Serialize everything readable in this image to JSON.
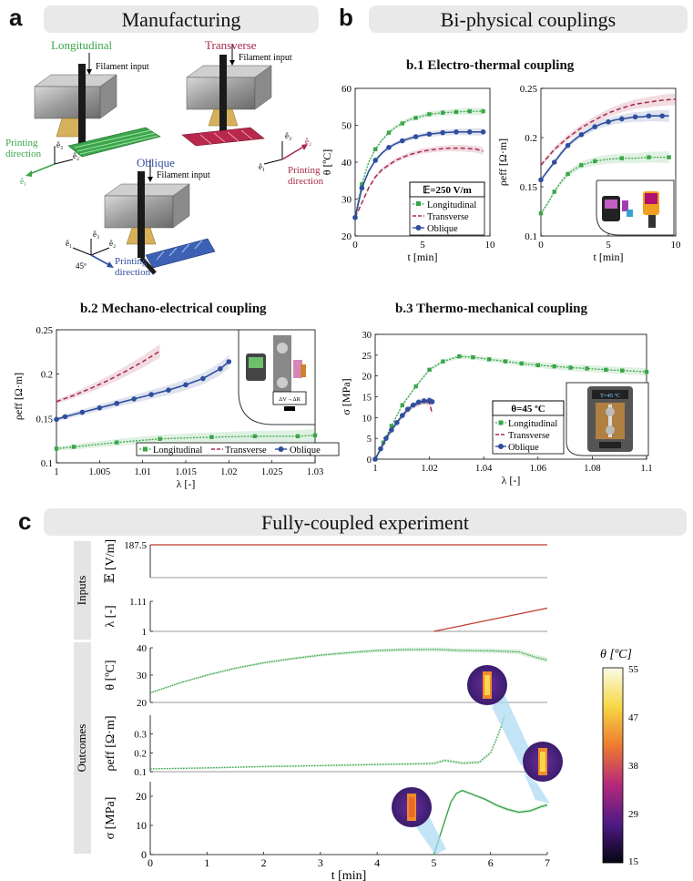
{
  "panel_a": {
    "letter": "a",
    "title": "Manufacturing",
    "orientations": {
      "longitudinal": "Longitudinal",
      "transverse": "Transverse",
      "oblique": "Oblique"
    },
    "filament_input": "Filament input",
    "printing": "Printing",
    "direction": "direction",
    "angle": "45º",
    "axes": {
      "e1": "ê₁",
      "e2": "ê₂",
      "e3": "ê₃"
    },
    "colors": {
      "longitudinal": "#3aa54a",
      "transverse": "#a7284a",
      "oblique": "#2f4e9e"
    }
  },
  "panel_b": {
    "letter": "b",
    "title": "Bi-physical couplings",
    "b1_title": "b.1 Electro-thermal coupling",
    "b2_title": "b.2  Mechano-electrical coupling",
    "b3_title": "b.3 Thermo-mechanical coupling",
    "b1_box": "𝔼=250 V/m",
    "b3_box": "θ=45 ºC",
    "b2_inset_text": "ΔV→ΔR",
    "b3_inset_text": "T=45 ºC",
    "legend": {
      "longitudinal": "Longitudinal",
      "transverse": "Transverse",
      "oblique": "Oblique"
    }
  },
  "panel_c": {
    "letter": "c",
    "title": "Fully-coupled experiment",
    "inputs_label": "Inputs",
    "outcomes_label": "Outcomes",
    "colorbar_title": "θ [ºC]",
    "colorbar_ticks": [
      "55",
      "47",
      "38",
      "29",
      "15"
    ]
  },
  "chart_data": [
    {
      "id": "b1-theta",
      "type": "line",
      "xlabel": "t [min]",
      "ylabel": "θ [ºC]",
      "xlim": [
        0,
        10
      ],
      "ylim": [
        20,
        60
      ],
      "xticks": [
        0,
        5,
        10
      ],
      "yticks": [
        20,
        30,
        40,
        50,
        60
      ],
      "series": [
        {
          "name": "Longitudinal",
          "x": [
            0,
            0.25,
            0.5,
            1,
            1.5,
            2,
            2.5,
            3,
            3.5,
            4,
            4.5,
            5,
            5.5,
            6,
            6.5,
            7,
            7.5,
            8,
            8.5,
            9,
            9.5
          ],
          "y": [
            25,
            30,
            34,
            40,
            43.5,
            46,
            48,
            49.5,
            50.5,
            51.5,
            52,
            52.5,
            53,
            53.2,
            53.4,
            53.5,
            53.6,
            53.7,
            53.8,
            53.8,
            53.8
          ]
        },
        {
          "name": "Transverse",
          "x": [
            0,
            0.5,
            1,
            1.5,
            2,
            3,
            4,
            5,
            6,
            7,
            8,
            9,
            9.5
          ],
          "y": [
            25,
            29,
            33,
            36,
            38,
            40.5,
            42,
            43,
            43.5,
            43.8,
            43.8,
            43.5,
            43
          ]
        },
        {
          "name": "Oblique",
          "x": [
            0,
            0.25,
            0.5,
            1,
            1.5,
            2,
            2.5,
            3,
            3.5,
            4,
            4.5,
            5,
            5.5,
            6,
            6.5,
            7,
            7.5,
            8,
            8.5,
            9,
            9.5
          ],
          "y": [
            25,
            29,
            33,
            37.5,
            40.5,
            42.5,
            44,
            45,
            45.8,
            46.4,
            46.9,
            47.3,
            47.6,
            47.8,
            48,
            48.1,
            48.2,
            48.2,
            48.2,
            48.2,
            48.2
          ]
        }
      ]
    },
    {
      "id": "b1-rho",
      "type": "line",
      "xlabel": "t [min]",
      "ylabel": "ρeff [Ω·m]",
      "xlim": [
        0,
        10
      ],
      "ylim": [
        0.1,
        0.25
      ],
      "xticks": [
        0,
        5,
        10
      ],
      "yticks": [
        0.1,
        0.15,
        0.2,
        0.25
      ],
      "series": [
        {
          "name": "Longitudinal",
          "x": [
            0,
            0.5,
            1,
            1.5,
            2,
            2.5,
            3,
            3.5,
            4,
            5,
            6,
            7,
            8,
            9,
            9.5
          ],
          "y": [
            0.123,
            0.133,
            0.145,
            0.155,
            0.163,
            0.168,
            0.172,
            0.174,
            0.176,
            0.178,
            0.179,
            0.179,
            0.18,
            0.18,
            0.18
          ]
        },
        {
          "name": "Transverse",
          "x": [
            0,
            0.5,
            1,
            2,
            3,
            4,
            5,
            6,
            7,
            8,
            9,
            10
          ],
          "y": [
            0.172,
            0.18,
            0.188,
            0.2,
            0.21,
            0.218,
            0.225,
            0.23,
            0.234,
            0.236,
            0.238,
            0.239
          ]
        },
        {
          "name": "Oblique",
          "x": [
            0,
            0.5,
            1,
            1.5,
            2,
            2.5,
            3,
            3.5,
            4,
            4.5,
            5,
            5.5,
            6,
            6.5,
            7,
            7.5,
            8,
            8.5,
            9,
            9.5
          ],
          "y": [
            0.157,
            0.166,
            0.175,
            0.184,
            0.192,
            0.198,
            0.203,
            0.207,
            0.211,
            0.214,
            0.216,
            0.218,
            0.219,
            0.22,
            0.221,
            0.221,
            0.222,
            0.222,
            0.222,
            0.222
          ]
        }
      ]
    },
    {
      "id": "b2-rho-lambda",
      "type": "line",
      "xlabel": "λ [-]",
      "ylabel": "ρeff [Ω·m]",
      "xlim": [
        1,
        1.03
      ],
      "ylim": [
        0.1,
        0.25
      ],
      "xticks": [
        1,
        1.005,
        1.01,
        1.015,
        1.02,
        1.025,
        1.03
      ],
      "yticks": [
        0.1,
        0.15,
        0.2,
        0.25
      ],
      "series": [
        {
          "name": "Longitudinal",
          "x": [
            1,
            1.002,
            1.007,
            1.012,
            1.018,
            1.023,
            1.028,
            1.03
          ],
          "y": [
            0.116,
            0.118,
            0.123,
            0.127,
            0.129,
            0.13,
            0.13,
            0.131
          ]
        },
        {
          "name": "Transverse",
          "x": [
            1,
            1.002,
            1.004,
            1.006,
            1.008,
            1.01,
            1.012
          ],
          "y": [
            0.169,
            0.176,
            0.184,
            0.193,
            0.203,
            0.214,
            0.226
          ]
        },
        {
          "name": "Oblique",
          "x": [
            1,
            1.001,
            1.003,
            1.005,
            1.007,
            1.009,
            1.011,
            1.013,
            1.015,
            1.017,
            1.019,
            1.02
          ],
          "y": [
            0.149,
            0.152,
            0.157,
            0.162,
            0.167,
            0.172,
            0.177,
            0.182,
            0.188,
            0.195,
            0.206,
            0.214
          ]
        }
      ]
    },
    {
      "id": "b3-sigma-lambda",
      "type": "line",
      "xlabel": "λ [-]",
      "ylabel": "σ [MPa]",
      "xlim": [
        1,
        1.1
      ],
      "ylim": [
        0,
        30
      ],
      "xticks": [
        1,
        1.02,
        1.04,
        1.06,
        1.08,
        1.1
      ],
      "yticks": [
        0,
        5,
        10,
        15,
        20,
        25,
        30
      ],
      "series": [
        {
          "name": "Longitudinal",
          "x": [
            1,
            1.003,
            1.006,
            1.01,
            1.015,
            1.02,
            1.025,
            1.031,
            1.036,
            1.042,
            1.048,
            1.054,
            1.06,
            1.066,
            1.072,
            1.078,
            1.085,
            1.091,
            1.1
          ],
          "y": [
            0,
            4,
            8,
            13,
            17.5,
            21.5,
            23.5,
            24.7,
            24.5,
            24,
            23.5,
            23,
            22.6,
            22.3,
            22,
            21.8,
            21.5,
            21.3,
            21
          ]
        },
        {
          "name": "Transverse",
          "x": [
            1,
            1.003,
            1.006,
            1.01,
            1.014,
            1.018,
            1.02,
            1.021
          ],
          "y": [
            0,
            3.5,
            7,
            10.5,
            12.8,
            13.9,
            13.5,
            11
          ]
        },
        {
          "name": "Oblique",
          "x": [
            1,
            1.002,
            1.004,
            1.006,
            1.008,
            1.01,
            1.012,
            1.014,
            1.016,
            1.018,
            1.02,
            1.021
          ],
          "y": [
            0,
            2.5,
            5,
            7,
            8.8,
            10.5,
            12,
            13,
            13.7,
            14,
            14.1,
            13.8
          ]
        }
      ]
    },
    {
      "id": "c-E",
      "type": "line",
      "ylabel": "𝔼 [V/m]",
      "xlim": [
        0,
        7
      ],
      "ylim": [
        0,
        187.5
      ],
      "yticks": [
        187.5
      ],
      "series": [
        {
          "x": [
            0,
            7
          ],
          "y": [
            187.5,
            187.5
          ]
        }
      ]
    },
    {
      "id": "c-lambda",
      "type": "line",
      "ylabel": "λ [-]",
      "xlim": [
        0,
        7
      ],
      "ylim": [
        1,
        1.11
      ],
      "yticks": [
        1,
        1.11
      ],
      "series": [
        {
          "x": [
            5,
            7
          ],
          "y": [
            1,
            1.085
          ]
        }
      ]
    },
    {
      "id": "c-theta",
      "type": "line",
      "ylabel": "θ [ºC]",
      "xlim": [
        0,
        7
      ],
      "ylim": [
        20,
        40
      ],
      "yticks": [
        20,
        30,
        40
      ],
      "series": [
        {
          "x": [
            0,
            0.5,
            1,
            1.5,
            2,
            2.5,
            3,
            3.5,
            4,
            4.5,
            5,
            5.5,
            6,
            6.5,
            6.8,
            7
          ],
          "y": [
            23.5,
            27,
            30,
            32.5,
            34.5,
            36,
            37.3,
            38.2,
            39,
            39.3,
            39.4,
            39,
            38.9,
            38.5,
            36.5,
            35.5
          ]
        }
      ]
    },
    {
      "id": "c-rho",
      "type": "line",
      "ylabel": "ρeff [Ω·m]",
      "xlim": [
        0,
        7
      ],
      "ylim": [
        0.1,
        0.4
      ],
      "yticks": [
        0.1,
        0.2,
        0.3
      ],
      "series": [
        {
          "x": [
            0,
            1,
            2,
            3,
            4,
            4.8,
            5,
            5.2,
            5.5,
            5.8,
            6,
            6.1,
            6.2,
            6.25
          ],
          "y": [
            0.115,
            0.12,
            0.127,
            0.132,
            0.138,
            0.142,
            0.144,
            0.16,
            0.145,
            0.15,
            0.2,
            0.27,
            0.35,
            0.4
          ]
        }
      ]
    },
    {
      "id": "c-sigma",
      "type": "line",
      "xlabel": "t [min]",
      "ylabel": "σ [MPa]",
      "xlim": [
        0,
        7
      ],
      "ylim": [
        0,
        25
      ],
      "xticks": [
        0,
        1,
        2,
        3,
        4,
        5,
        6,
        7
      ],
      "yticks": [
        0,
        10,
        20
      ],
      "series": [
        {
          "x": [
            5,
            5.1,
            5.2,
            5.3,
            5.4,
            5.5,
            5.7,
            5.9,
            6.1,
            6.3,
            6.5,
            6.7,
            6.9,
            7
          ],
          "y": [
            0,
            6,
            12,
            18,
            21,
            22,
            20.5,
            19,
            17,
            15.5,
            14.5,
            15,
            16.5,
            17
          ]
        }
      ]
    }
  ]
}
